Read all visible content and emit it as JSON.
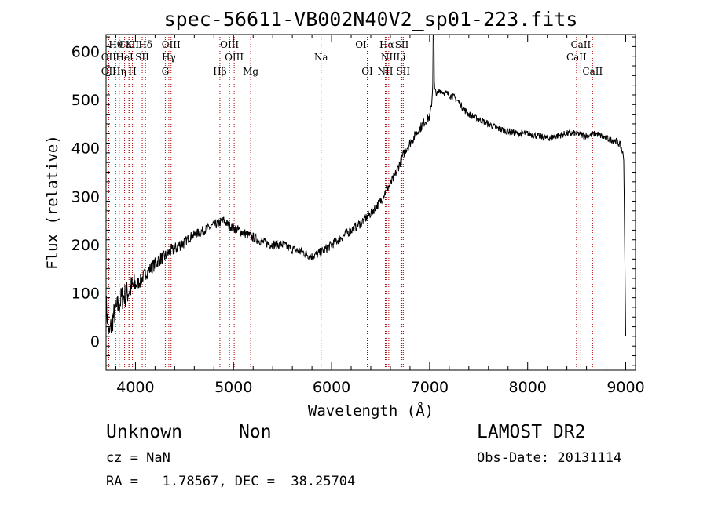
{
  "chart_data": {
    "type": "line",
    "title": "spec-56611-VB002N40V2_sp01-223.fits",
    "xlabel": "Wavelength (Å)",
    "ylabel": "Flux (relative)",
    "xlim": [
      3700,
      9100
    ],
    "ylim": [
      -60,
      635
    ],
    "xticks": [
      4000,
      5000,
      6000,
      7000,
      8000,
      9000
    ],
    "yticks": [
      0,
      100,
      200,
      300,
      400,
      500,
      600
    ],
    "grid": false,
    "series": [
      {
        "x": [
          3700,
          3730,
          3760,
          3790,
          3820,
          3860,
          3900,
          3950,
          4000,
          4050,
          4100,
          4150,
          4200,
          4250,
          4300,
          4350,
          4400,
          4450,
          4500,
          4550,
          4600,
          4650,
          4700,
          4750,
          4800,
          4850,
          4900,
          4950,
          5000,
          5050,
          5100,
          5200,
          5300,
          5400,
          5500,
          5600,
          5700,
          5800,
          5900,
          6000,
          6100,
          6200,
          6300,
          6400,
          6500,
          6550,
          6600,
          6650,
          6700,
          6750,
          6800,
          6850,
          6900,
          6950,
          7000,
          7020,
          7030,
          7040,
          7050,
          7080,
          7100,
          7150,
          7200,
          7250,
          7300,
          7350,
          7400,
          7500,
          7600,
          7700,
          7800,
          7900,
          8000,
          8100,
          8200,
          8300,
          8400,
          8500,
          8600,
          8700,
          8800,
          8900,
          8950,
          8980,
          9000
        ],
        "values": [
          80,
          10,
          40,
          60,
          70,
          90,
          95,
          110,
          115,
          125,
          140,
          150,
          160,
          170,
          175,
          185,
          190,
          200,
          205,
          215,
          220,
          225,
          230,
          235,
          240,
          245,
          250,
          240,
          235,
          230,
          225,
          215,
          205,
          200,
          200,
          190,
          185,
          175,
          185,
          200,
          215,
          230,
          245,
          265,
          290,
          310,
          325,
          345,
          370,
          395,
          410,
          425,
          440,
          455,
          465,
          490,
          520,
          600,
          520,
          510,
          520,
          515,
          510,
          505,
          495,
          480,
          470,
          460,
          450,
          440,
          435,
          430,
          430,
          425,
          420,
          425,
          430,
          430,
          425,
          430,
          420,
          415,
          405,
          380,
          10
        ]
      }
    ],
    "emission_lines": [
      {
        "label": "Hθ",
        "x": 3798,
        "row": 0
      },
      {
        "label": "CaII",
        "x": 3934,
        "row": 0
      },
      {
        "label": "K",
        "x": 3934,
        "row": 0
      },
      {
        "label": "Hδ",
        "x": 4102,
        "row": 0
      },
      {
        "label": "OIII",
        "x": 4363,
        "row": 0
      },
      {
        "label": "OIII",
        "x": 4959,
        "row": 0
      },
      {
        "label": "OI",
        "x": 6300,
        "row": 0
      },
      {
        "label": "Hα",
        "x": 6563,
        "row": 0
      },
      {
        "label": "SII",
        "x": 6717,
        "row": 0
      },
      {
        "label": "CaII",
        "x": 8542,
        "row": 0
      },
      {
        "label": "OII",
        "x": 3727,
        "row": 1
      },
      {
        "label": "HeI",
        "x": 3889,
        "row": 1
      },
      {
        "label": "SII",
        "x": 4069,
        "row": 1
      },
      {
        "label": "Hγ",
        "x": 4340,
        "row": 1
      },
      {
        "label": "OIII",
        "x": 5007,
        "row": 1
      },
      {
        "label": "Na",
        "x": 5893,
        "row": 1
      },
      {
        "label": "NII",
        "x": 6583,
        "row": 1
      },
      {
        "label": "Li",
        "x": 6708,
        "row": 1
      },
      {
        "label": "CaII",
        "x": 8498,
        "row": 1
      },
      {
        "label": "OII",
        "x": 3727,
        "row": 2
      },
      {
        "label": "Hη",
        "x": 3835,
        "row": 2
      },
      {
        "label": "H",
        "x": 3969,
        "row": 2
      },
      {
        "label": "G",
        "x": 4304,
        "row": 2
      },
      {
        "label": "Hβ",
        "x": 4861,
        "row": 2
      },
      {
        "label": "Mg",
        "x": 5175,
        "row": 2
      },
      {
        "label": "OI",
        "x": 6364,
        "row": 2
      },
      {
        "label": "NII",
        "x": 6548,
        "row": 2
      },
      {
        "label": "SII",
        "x": 6731,
        "row": 2
      },
      {
        "label": "CaII",
        "x": 8662,
        "row": 2
      }
    ]
  },
  "info": {
    "class": "Unknown",
    "subclass": "Non",
    "survey": "LAMOST DR2",
    "cz": "cz = NaN",
    "obs_date": "Obs-Date: 20131114",
    "coords": "RA =   1.78567, DEC =  38.25704"
  }
}
